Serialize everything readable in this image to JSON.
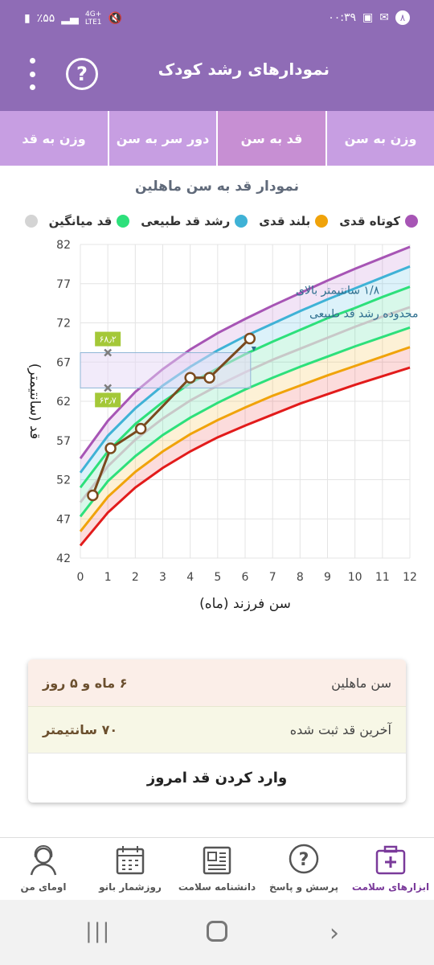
{
  "status": {
    "time": "۰۰:۳۹",
    "battery": "٪۵۵",
    "net_top": "4G+",
    "net_bottom": "LTE1",
    "vol_top": "Vo)",
    "notif_count": "۸"
  },
  "appbar": {
    "title": "نمودارهای رشد کودک"
  },
  "tabs": [
    {
      "label": "وزن به سن",
      "active": false
    },
    {
      "label": "قد به سن",
      "active": true
    },
    {
      "label": "دور سر به سن",
      "active": false
    },
    {
      "label": "وزن به قد",
      "active": false
    }
  ],
  "chart_title": "نمودار قد به سن ماهلین",
  "legend": [
    {
      "label": "کوتاه قدی",
      "color": "#a755b5"
    },
    {
      "label": "بلند قدی",
      "color": "#f0a30a"
    },
    {
      "label": "رشد قد طبیعی",
      "color": "#3fb2d6"
    },
    {
      "label": "قد میانگین",
      "color": "#2de07b"
    },
    {
      "label": "",
      "color": "#d4d4d4"
    }
  ],
  "annotation": {
    "line1": "۱/۸ سانتیمتر بالای",
    "line2": "محدوده رشد قد طبیعی",
    "upper_tag": "۶۸٫۲",
    "lower_tag": "۶۳٫۷"
  },
  "chart_data": {
    "type": "line",
    "xlabel": "سن فرزند (ماه)",
    "ylabel": "قد (سانتیمتر)",
    "xlim": [
      0,
      12
    ],
    "ylim": [
      42,
      82
    ],
    "x_ticks": [
      "0",
      "1",
      "2",
      "3",
      "4",
      "5",
      "6",
      "7",
      "8",
      "9",
      "10",
      "11",
      "12"
    ],
    "y_ticks": [
      "42",
      "47",
      "52",
      "57",
      "62",
      "67",
      "72",
      "77",
      "82"
    ],
    "reference_curves": [
      {
        "color": "#e21b1b",
        "values": [
          [
            0,
            43.6
          ],
          [
            1,
            47.8
          ],
          [
            2,
            51.0
          ],
          [
            3,
            53.5
          ],
          [
            4,
            55.6
          ],
          [
            5,
            57.4
          ],
          [
            6,
            58.9
          ],
          [
            7,
            60.3
          ],
          [
            8,
            61.7
          ],
          [
            9,
            62.9
          ],
          [
            10,
            64.1
          ],
          [
            11,
            65.2
          ],
          [
            12,
            66.3
          ]
        ]
      },
      {
        "color": "#f0a30a",
        "values": [
          [
            0,
            45.4
          ],
          [
            1,
            49.8
          ],
          [
            2,
            53.0
          ],
          [
            3,
            55.6
          ],
          [
            4,
            57.8
          ],
          [
            5,
            59.6
          ],
          [
            6,
            61.2
          ],
          [
            7,
            62.7
          ],
          [
            8,
            64.0
          ],
          [
            9,
            65.3
          ],
          [
            10,
            66.5
          ],
          [
            11,
            67.7
          ],
          [
            12,
            68.9
          ]
        ]
      },
      {
        "color": "#2de07b",
        "values": [
          [
            0,
            47.3
          ],
          [
            1,
            51.8
          ],
          [
            2,
            55.0
          ],
          [
            3,
            57.7
          ],
          [
            4,
            59.9
          ],
          [
            5,
            61.8
          ],
          [
            6,
            63.5
          ],
          [
            7,
            65.0
          ],
          [
            8,
            66.4
          ],
          [
            9,
            67.7
          ],
          [
            10,
            69.0
          ],
          [
            11,
            70.2
          ],
          [
            12,
            71.4
          ]
        ]
      },
      {
        "color": "#c8c8c8",
        "values": [
          [
            0,
            49.1
          ],
          [
            1,
            53.7
          ],
          [
            2,
            57.1
          ],
          [
            3,
            59.8
          ],
          [
            4,
            62.1
          ],
          [
            5,
            64.0
          ],
          [
            6,
            65.7
          ],
          [
            7,
            67.3
          ],
          [
            8,
            68.7
          ],
          [
            9,
            70.1
          ],
          [
            10,
            71.5
          ],
          [
            11,
            72.8
          ],
          [
            12,
            74.0
          ]
        ]
      },
      {
        "color": "#2de07b",
        "values": [
          [
            0,
            51.0
          ],
          [
            1,
            55.6
          ],
          [
            2,
            59.1
          ],
          [
            3,
            61.9
          ],
          [
            4,
            64.3
          ],
          [
            5,
            66.2
          ],
          [
            6,
            68.0
          ],
          [
            7,
            69.6
          ],
          [
            8,
            71.1
          ],
          [
            9,
            72.6
          ],
          [
            10,
            73.9
          ],
          [
            11,
            75.3
          ],
          [
            12,
            76.6
          ]
        ]
      },
      {
        "color": "#3fb2d6",
        "values": [
          [
            0,
            52.9
          ],
          [
            1,
            57.6
          ],
          [
            2,
            61.1
          ],
          [
            3,
            64.0
          ],
          [
            4,
            66.4
          ],
          [
            5,
            68.5
          ],
          [
            6,
            70.3
          ],
          [
            7,
            71.9
          ],
          [
            8,
            73.5
          ],
          [
            9,
            75.0
          ],
          [
            10,
            76.4
          ],
          [
            11,
            77.8
          ],
          [
            12,
            79.2
          ]
        ]
      },
      {
        "color": "#a755b5",
        "values": [
          [
            0,
            54.7
          ],
          [
            1,
            59.5
          ],
          [
            2,
            63.2
          ],
          [
            3,
            66.1
          ],
          [
            4,
            68.6
          ],
          [
            5,
            70.7
          ],
          [
            6,
            72.5
          ],
          [
            7,
            74.2
          ],
          [
            8,
            75.8
          ],
          [
            9,
            77.4
          ],
          [
            10,
            78.9
          ],
          [
            11,
            80.3
          ],
          [
            12,
            81.7
          ]
        ]
      }
    ],
    "series": [
      {
        "color": "#7a4a1e",
        "values": [
          [
            0.45,
            50.0
          ],
          [
            1.1,
            56.0
          ],
          [
            2.2,
            58.5
          ],
          [
            4.0,
            65.0
          ],
          [
            4.7,
            65.0
          ],
          [
            6.17,
            70.0
          ]
        ]
      }
    ],
    "marker_points": [
      [
        1.0,
        68.2
      ],
      [
        1.0,
        63.7
      ]
    ]
  },
  "card": {
    "age_label": "سن ماهلین",
    "age_value": "۶ ماه و ۵ روز",
    "height_label": "آخرین قد ثبت شده",
    "height_value": "۷۰ سانتیمتر",
    "action": "وارد کردن قد امروز"
  },
  "bottomnav": [
    {
      "label": "ابزارهای سلامت",
      "icon": "medical-kit-icon",
      "active": true
    },
    {
      "label": "پرسش و پاسخ",
      "icon": "question-bubble-icon",
      "active": false
    },
    {
      "label": "دانشنامه سلامت",
      "icon": "newspaper-icon",
      "active": false
    },
    {
      "label": "روزشمار بانو",
      "icon": "calendar-icon",
      "active": false
    },
    {
      "label": "اومای من",
      "icon": "woman-avatar-icon",
      "active": false
    }
  ]
}
